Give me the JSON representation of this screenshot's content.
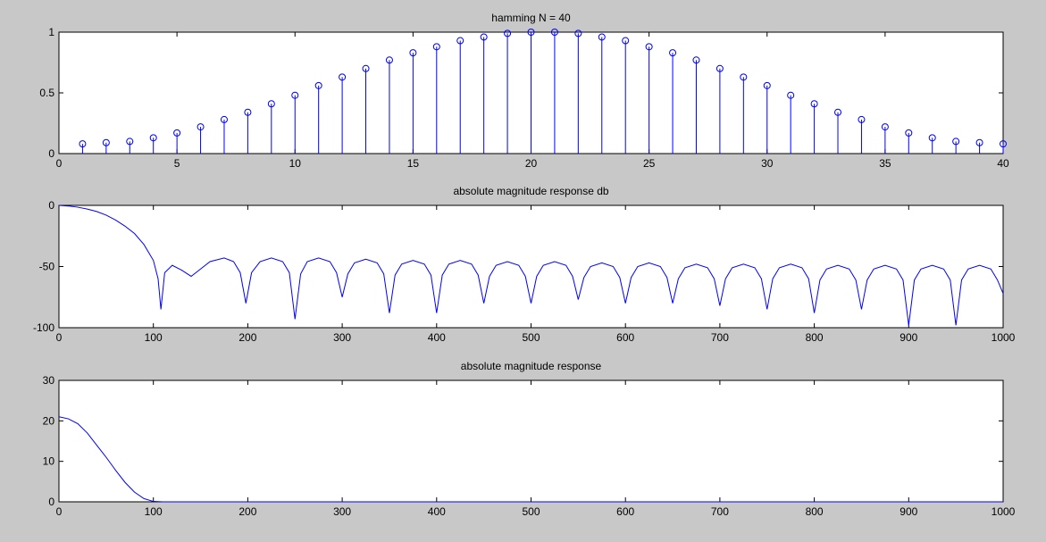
{
  "chart_data": [
    {
      "type": "stem",
      "title": "hamming N = 40",
      "color": "#0000ff",
      "x": [
        1,
        2,
        3,
        4,
        5,
        6,
        7,
        8,
        9,
        10,
        11,
        12,
        13,
        14,
        15,
        16,
        17,
        18,
        19,
        20,
        21,
        22,
        23,
        24,
        25,
        26,
        27,
        28,
        29,
        30,
        31,
        32,
        33,
        34,
        35,
        36,
        37,
        38,
        39,
        40
      ],
      "values": [
        0.08,
        0.09,
        0.1,
        0.13,
        0.17,
        0.22,
        0.28,
        0.34,
        0.41,
        0.48,
        0.56,
        0.63,
        0.7,
        0.77,
        0.83,
        0.88,
        0.93,
        0.96,
        0.99,
        1.0,
        1.0,
        0.99,
        0.96,
        0.93,
        0.88,
        0.83,
        0.77,
        0.7,
        0.63,
        0.56,
        0.48,
        0.41,
        0.34,
        0.28,
        0.22,
        0.17,
        0.13,
        0.1,
        0.09,
        0.08
      ],
      "xlim": [
        0,
        40
      ],
      "xticks": [
        0,
        5,
        10,
        15,
        20,
        25,
        30,
        35,
        40
      ],
      "ylim": [
        0,
        1
      ],
      "yticks": [
        0,
        0.5,
        1
      ]
    },
    {
      "type": "line",
      "title": "absolute magnitude response db",
      "color": "#0000ff",
      "x": [
        0,
        10,
        20,
        30,
        40,
        50,
        60,
        70,
        80,
        90,
        100,
        105,
        108,
        112,
        120,
        130,
        140,
        150,
        160,
        175,
        185,
        192,
        198,
        204,
        213,
        225,
        237,
        244,
        250,
        256,
        263,
        275,
        287,
        294,
        300,
        306,
        313,
        325,
        337,
        344,
        350,
        356,
        363,
        375,
        387,
        394,
        400,
        406,
        413,
        425,
        437,
        444,
        450,
        456,
        463,
        475,
        487,
        494,
        500,
        506,
        513,
        525,
        537,
        544,
        550,
        556,
        563,
        575,
        587,
        594,
        600,
        606,
        613,
        625,
        637,
        644,
        650,
        656,
        663,
        675,
        687,
        694,
        700,
        706,
        713,
        725,
        737,
        744,
        750,
        756,
        763,
        775,
        787,
        794,
        800,
        806,
        813,
        825,
        837,
        844,
        850,
        856,
        863,
        875,
        887,
        894,
        900,
        906,
        913,
        925,
        937,
        944,
        950,
        956,
        963,
        975,
        987,
        994,
        1000
      ],
      "values": [
        0,
        -0.5,
        -1.5,
        -3,
        -5,
        -8,
        -12,
        -17,
        -23,
        -32,
        -45,
        -60,
        -85,
        -55,
        -49,
        -53,
        -58,
        -52,
        -46,
        -43,
        -46,
        -55,
        -80,
        -55,
        -46,
        -43,
        -46,
        -55,
        -93,
        -56,
        -46,
        -43,
        -46,
        -55,
        -75,
        -56,
        -47,
        -44,
        -47,
        -56,
        -88,
        -57,
        -48,
        -45,
        -48,
        -57,
        -88,
        -57,
        -48,
        -45,
        -48,
        -57,
        -80,
        -58,
        -49,
        -46,
        -49,
        -58,
        -80,
        -58,
        -49,
        -46,
        -49,
        -58,
        -77,
        -59,
        -50,
        -47,
        -50,
        -59,
        -80,
        -59,
        -50,
        -47,
        -50,
        -59,
        -80,
        -60,
        -51,
        -48,
        -51,
        -60,
        -82,
        -60,
        -51,
        -48,
        -51,
        -60,
        -85,
        -60,
        -51,
        -48,
        -51,
        -60,
        -88,
        -61,
        -52,
        -49,
        -52,
        -61,
        -85,
        -61,
        -52,
        -49,
        -52,
        -61,
        -98,
        -61,
        -52,
        -49,
        -52,
        -61,
        -98,
        -61,
        -52,
        -49,
        -52,
        -61,
        -72
      ],
      "xlim": [
        0,
        1000
      ],
      "xticks": [
        0,
        100,
        200,
        300,
        400,
        500,
        600,
        700,
        800,
        900,
        1000
      ],
      "ylim": [
        -100,
        0
      ],
      "yticks": [
        -100,
        -50,
        0
      ]
    },
    {
      "type": "line",
      "title": "absolute magnitude response",
      "color": "#0000ff",
      "x": [
        0,
        10,
        20,
        30,
        40,
        50,
        60,
        70,
        80,
        90,
        100,
        110,
        200,
        300,
        400,
        500,
        600,
        700,
        800,
        900,
        1000
      ],
      "values": [
        21,
        20.5,
        19.3,
        17,
        14,
        11,
        7.8,
        4.8,
        2.4,
        0.8,
        0.1,
        0,
        0,
        0,
        0,
        0,
        0,
        0,
        0,
        0,
        0
      ],
      "xlim": [
        0,
        1000
      ],
      "xticks": [
        0,
        100,
        200,
        300,
        400,
        500,
        600,
        700,
        800,
        900,
        1000
      ],
      "ylim": [
        0,
        30
      ],
      "yticks": [
        0,
        10,
        20,
        30
      ]
    }
  ]
}
